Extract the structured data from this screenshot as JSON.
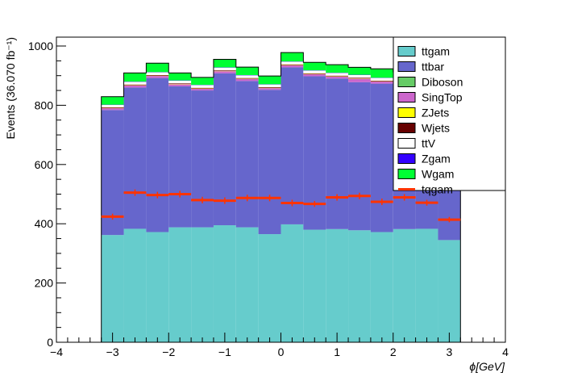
{
  "chart_data": {
    "type": "bar",
    "subtype": "stacked-histogram",
    "xlabel": "ϕ[GeV]",
    "ylabel": "Events (36.070 fb⁻¹)",
    "xlim": [
      -4,
      4
    ],
    "ylim": [
      0,
      1030
    ],
    "x_ticks": [
      "−4",
      "−3",
      "−2",
      "−1",
      "0",
      "1",
      "2",
      "3",
      "4"
    ],
    "y_ticks": [
      "0",
      "200",
      "400",
      "600",
      "800",
      "1000"
    ],
    "grid": false,
    "legend_position": "top-right",
    "bin_edges": [
      -3.2,
      -2.8,
      -2.4,
      -2.0,
      -1.6,
      -1.2,
      -0.8,
      -0.4,
      0.0,
      0.4,
      0.8,
      1.2,
      1.6,
      2.0,
      2.4,
      2.8,
      3.2
    ],
    "series": [
      {
        "name": "ttgam",
        "color": "#66cccc",
        "values": [
          362,
          383,
          372,
          388,
          388,
          395,
          388,
          365,
          398,
          380,
          382,
          378,
          372,
          382,
          383,
          345
        ]
      },
      {
        "name": "ttbar",
        "color": "#6666cc",
        "values": [
          422,
          477,
          520,
          476,
          462,
          513,
          494,
          487,
          530,
          518,
          508,
          500,
          501,
          487,
          505,
          445
        ]
      },
      {
        "name": "Diboson",
        "color": "#66cc66",
        "values": [
          0,
          0,
          0,
          0,
          0,
          0,
          0,
          0,
          0,
          0,
          0,
          0,
          0,
          0,
          0,
          0
        ]
      },
      {
        "name": "SingTop",
        "color": "#cc66cc",
        "values": [
          6,
          7,
          7,
          7,
          6,
          7,
          7,
          6,
          7,
          7,
          7,
          12,
          7,
          7,
          7,
          6
        ]
      },
      {
        "name": "ZJets",
        "color": "#ffff00",
        "values": [
          1,
          1,
          1,
          1,
          1,
          1,
          1,
          1,
          1,
          1,
          1,
          1,
          1,
          1,
          1,
          1
        ]
      },
      {
        "name": "Wjets",
        "color": "#660000",
        "values": [
          2,
          2,
          2,
          2,
          2,
          2,
          2,
          2,
          2,
          2,
          2,
          2,
          2,
          2,
          2,
          2
        ]
      },
      {
        "name": "ttV",
        "color": "#ffffff",
        "values": [
          8,
          9,
          9,
          9,
          9,
          9,
          9,
          9,
          9,
          9,
          9,
          9,
          9,
          9,
          9,
          8
        ]
      },
      {
        "name": "Zgam",
        "color": "#3300ff",
        "values": [
          1,
          1,
          1,
          1,
          1,
          1,
          1,
          1,
          1,
          1,
          1,
          1,
          1,
          1,
          1,
          1
        ]
      },
      {
        "name": "Wgam",
        "color": "#00ff33",
        "values": [
          27,
          29,
          30,
          25,
          25,
          27,
          27,
          28,
          30,
          27,
          27,
          25,
          30,
          24,
          30,
          24
        ]
      }
    ],
    "overlay": {
      "name": "tqgam",
      "color": "#ff3300",
      "type": "points-with-errors",
      "values": [
        424,
        505,
        497,
        500,
        480,
        478,
        487,
        487,
        470,
        467,
        489,
        494,
        474,
        489,
        471,
        414
      ],
      "errors": [
        10,
        11,
        11,
        11,
        11,
        11,
        11,
        11,
        11,
        10,
        11,
        11,
        11,
        11,
        10,
        9
      ]
    }
  }
}
